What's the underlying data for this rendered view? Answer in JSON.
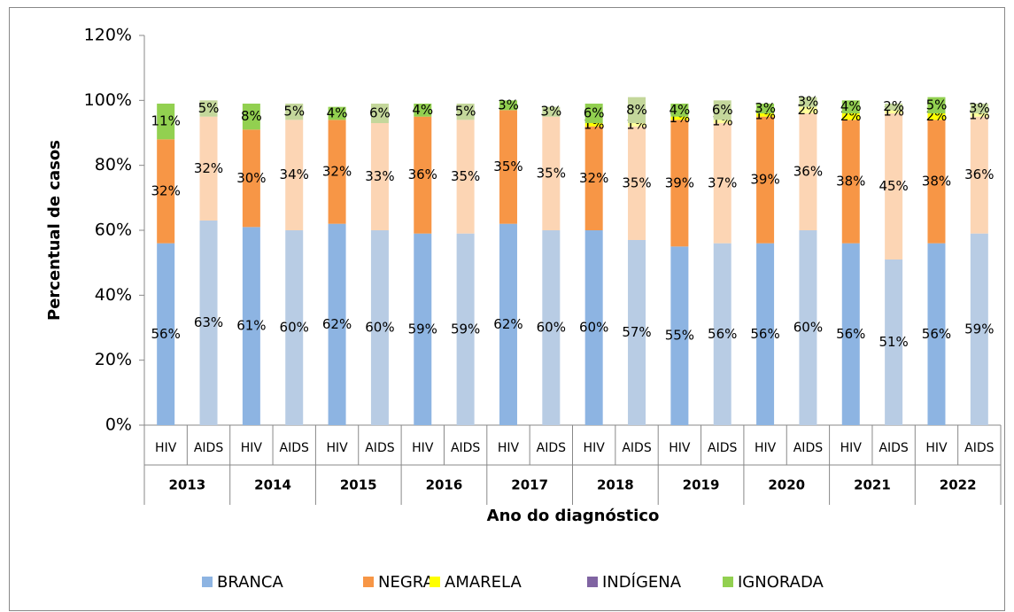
{
  "chart_data": {
    "type": "stacked_bar",
    "categories": [
      "HIV",
      "AIDS",
      "HIV",
      "AIDS",
      "HIV",
      "AIDS",
      "HIV",
      "AIDS",
      "HIV",
      "AIDS",
      "HIV",
      "AIDS",
      "HIV",
      "AIDS",
      "HIV",
      "AIDS",
      "HIV",
      "AIDS",
      "HIV",
      "AIDS"
    ],
    "groups": [
      "2013",
      "2014",
      "2015",
      "2016",
      "2017",
      "2018",
      "2019",
      "2020",
      "2021",
      "2022"
    ],
    "x_label": "Ano do diagnóstico",
    "y_label": "Percentual de casos",
    "ylim": [
      0,
      120
    ],
    "yticks": [
      {
        "value": 0,
        "label": "0%"
      },
      {
        "value": 20,
        "label": "20%"
      },
      {
        "value": 40,
        "label": "40%"
      },
      {
        "value": 60,
        "label": "60%"
      },
      {
        "value": 80,
        "label": "80%"
      },
      {
        "value": 100,
        "label": "100%"
      },
      {
        "value": 120,
        "label": "120%"
      }
    ],
    "legend": "bottom",
    "series": [
      {
        "name": "BRANCA",
        "color": "#8db4e2",
        "alt_color": "#b8cce4",
        "values": [
          56,
          63,
          61,
          60,
          62,
          60,
          59,
          59,
          62,
          60,
          60,
          57,
          55,
          56,
          56,
          60,
          56,
          51,
          56,
          59
        ],
        "value_labels": [
          "56%",
          "63%",
          "61%",
          "60%",
          "62%",
          "60%",
          "59%",
          "59%",
          "62%",
          "60%",
          "60%",
          "57%",
          "55%",
          "56%",
          "56%",
          "60%",
          "56%",
          "51%",
          "56%",
          "59%"
        ]
      },
      {
        "name": "NEGRA",
        "color": "#f79646",
        "alt_color": "#fcd5b4",
        "values": [
          32,
          32,
          30,
          34,
          32,
          33,
          36,
          35,
          35,
          35,
          32,
          35,
          39,
          37,
          39,
          36,
          38,
          45,
          38,
          36
        ],
        "value_labels": [
          "32%",
          "32%",
          "30%",
          "34%",
          "32%",
          "33%",
          "36%",
          "35%",
          "35%",
          "35%",
          "32%",
          "35%",
          "39%",
          "37%",
          "39%",
          "36%",
          "38%",
          "45%",
          "38%",
          "36%"
        ]
      },
      {
        "name": "AMARELA",
        "color": "#ffff00",
        "alt_color": "#ffff99",
        "values": [
          null,
          null,
          null,
          null,
          null,
          null,
          null,
          null,
          null,
          null,
          1,
          1,
          1,
          1,
          1,
          2,
          2,
          1,
          2,
          1
        ],
        "value_labels": [
          null,
          null,
          null,
          null,
          null,
          null,
          null,
          null,
          null,
          null,
          "1%",
          "1%",
          "1%",
          "1%",
          "1%",
          "2%",
          "2%",
          "1%",
          "2%",
          "1%"
        ]
      },
      {
        "name": "INDÍGENA",
        "color": "#8064a2",
        "alt_color": "#b3a2c7",
        "values": [
          null,
          null,
          null,
          null,
          null,
          null,
          null,
          null,
          null,
          null,
          null,
          null,
          null,
          null,
          null,
          null,
          null,
          null,
          null,
          null
        ]
      },
      {
        "name": "IGNORADA",
        "color": "#92d050",
        "alt_color": "#c4d79b",
        "values": [
          11,
          5,
          8,
          5,
          4,
          6,
          4,
          5,
          3,
          3,
          6,
          8,
          4,
          6,
          3,
          3,
          4,
          2,
          5,
          3
        ],
        "value_labels": [
          "11%",
          "5%",
          "8%",
          "5%",
          "4%",
          "6%",
          "4%",
          "5%",
          "3%",
          "3%",
          "6%",
          "8%",
          "4%",
          "6%",
          "3%",
          "3%",
          "4%",
          "2%",
          "5%",
          "3%"
        ]
      }
    ]
  }
}
